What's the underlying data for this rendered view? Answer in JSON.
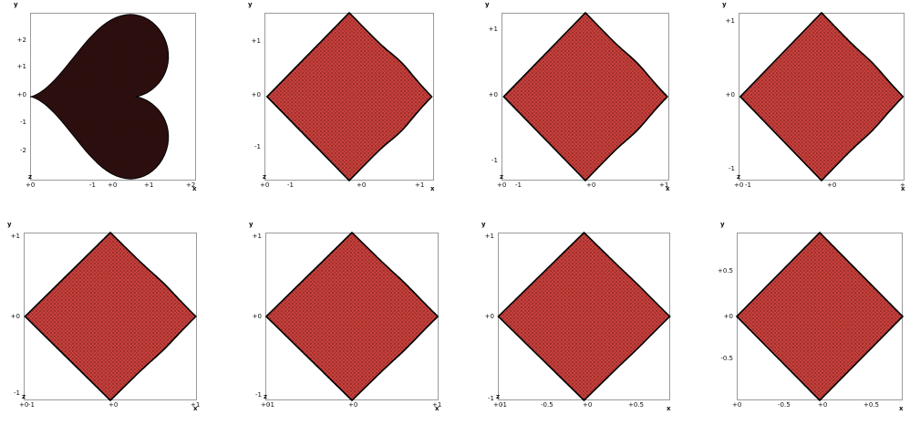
{
  "colors": {
    "fill_dark": "#2a0f0f",
    "fill": "#c8403c",
    "mesh": "#3a0c0a",
    "outline": "#000000",
    "frame": "#9a9a9a"
  },
  "chart_data": [
    {
      "type": "scatter",
      "x_axis_name": "x",
      "y_axis_name": "y",
      "origin_label": "z",
      "xlim": [
        0,
        2.05
      ],
      "ylim": [
        -2.95,
        2.95
      ],
      "x_ticks": [
        "+0",
        "-1",
        "+0",
        "+1",
        "+2"
      ],
      "y_ticks": [
        "+2",
        "+1",
        "+0",
        "-1",
        "-2"
      ],
      "shape_step": 0
    },
    {
      "type": "scatter",
      "x_axis_name": "x",
      "y_axis_name": "y",
      "origin_label": "z",
      "xlim": [
        -1.55,
        1.1
      ],
      "ylim": [
        -1.55,
        1.55
      ],
      "x_ticks": [
        "+0",
        "-1",
        "+0",
        "+1"
      ],
      "y_ticks": [
        "+1",
        "+0",
        "-1"
      ],
      "shape_step": 1
    },
    {
      "type": "scatter",
      "x_axis_name": "x",
      "y_axis_name": "y",
      "origin_label": "z",
      "xlim": [
        -1.3,
        1.05
      ],
      "ylim": [
        -1.3,
        1.3
      ],
      "x_ticks": [
        "+0",
        "-1",
        "+0",
        "+1"
      ],
      "y_ticks": [
        "+1",
        "+0",
        "-1"
      ],
      "shape_step": 2
    },
    {
      "type": "scatter",
      "x_axis_name": "x",
      "y_axis_name": "y",
      "origin_label": "z",
      "xlim": [
        -1.15,
        1.05
      ],
      "ylim": [
        -1.2,
        1.2
      ],
      "x_ticks": [
        "+0",
        "-1",
        "+0",
        "+"
      ],
      "y_ticks": [
        "+1",
        "+0",
        "-1"
      ],
      "shape_step": 3
    },
    {
      "type": "scatter",
      "x_axis_name": "x",
      "y_axis_name": "y",
      "origin_label": "z",
      "xlim": [
        -1.1,
        1.05
      ],
      "ylim": [
        -1.2,
        1.2
      ],
      "x_ticks": [
        "+0",
        "-1",
        "+0",
        "+1"
      ],
      "y_ticks": [
        "+1",
        "+0",
        "-1"
      ],
      "shape_step": 4
    },
    {
      "type": "scatter",
      "x_axis_name": "x",
      "y_axis_name": "y",
      "origin_label": "z",
      "xlim": [
        -1.05,
        1.05
      ],
      "ylim": [
        -1.2,
        1.1
      ],
      "x_ticks": [
        "+0",
        "-1",
        "+0",
        "+1"
      ],
      "y_ticks": [
        "+1",
        "+0",
        "-1"
      ],
      "shape_step": 5
    },
    {
      "type": "scatter",
      "x_axis_name": "x",
      "y_axis_name": "y",
      "origin_label": "z",
      "xlim": [
        -1.0,
        0.95
      ],
      "ylim": [
        -1.05,
        1.05
      ],
      "x_ticks": [
        "+0",
        "-1",
        "-0.5",
        "+0",
        "+0.5"
      ],
      "y_ticks": [
        "+1",
        "+0",
        "-1"
      ],
      "shape_step": 6
    },
    {
      "type": "scatter",
      "x_axis_name": "x",
      "y_axis_name": "y",
      "origin_label": "",
      "xlim": [
        -0.95,
        0.95
      ],
      "ylim": [
        -0.95,
        0.95
      ],
      "x_ticks": [
        "+0",
        "-0.5",
        "+0",
        "+0.5"
      ],
      "y_ticks": [
        "+0.5",
        "+0",
        "-0.5"
      ],
      "shape_step": 7
    }
  ]
}
